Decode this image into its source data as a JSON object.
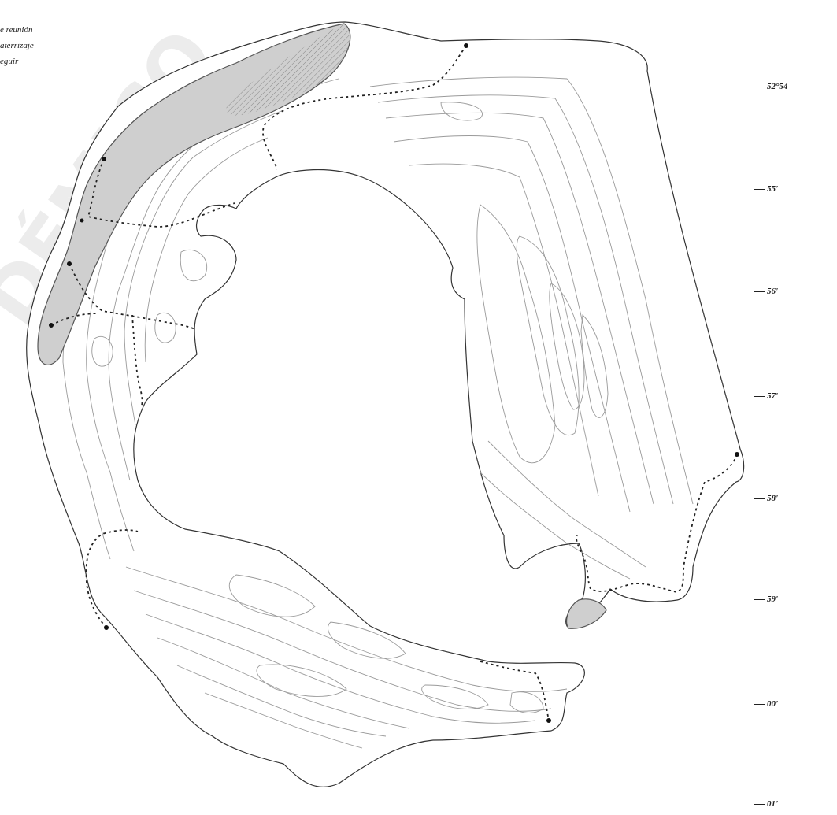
{
  "legend": {
    "items": [
      "e reunión",
      "aterrizaje",
      "eguir"
    ]
  },
  "latitude_labels": [
    "52°54",
    "55'",
    "56'",
    "57'",
    "58'",
    "59'",
    "00'",
    "01'"
  ],
  "colors": {
    "coastline": "#333333",
    "contour": "#9a9a9a",
    "landing_zone": "#cfcfcf",
    "route": "#222222"
  },
  "watermark": "DÉMICO"
}
